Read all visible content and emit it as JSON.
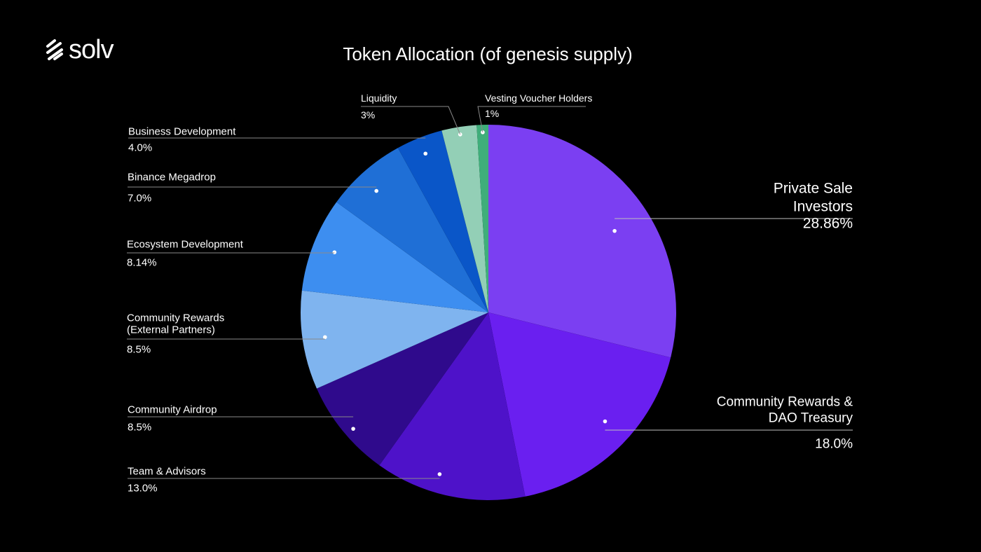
{
  "brand": {
    "name": "solv",
    "mark_icon": "solv-logo-icon"
  },
  "chart_data": {
    "type": "pie",
    "title": "Token Allocation (of genesis supply)",
    "slices": [
      {
        "label": "Private Sale Investors",
        "value": 28.86,
        "value_label": "28.86%",
        "color": "#7b3ff2",
        "label_lines": [
          "Private Sale",
          "Investors"
        ]
      },
      {
        "label": "Community Rewards & DAO Treasury",
        "value": 18.0,
        "value_label": "18.0%",
        "color": "#6a1ff0",
        "label_lines": [
          "Community Rewards &",
          "DAO Treasury"
        ]
      },
      {
        "label": "Team & Advisors",
        "value": 13.0,
        "value_label": "13.0%",
        "color": "#4e12c9",
        "label_lines": [
          "Team & Advisors"
        ]
      },
      {
        "label": "Community Airdrop",
        "value": 8.5,
        "value_label": "8.5%",
        "color": "#2f0a8c",
        "label_lines": [
          "Community Airdrop"
        ]
      },
      {
        "label": "Community Rewards (External Partners)",
        "value": 8.5,
        "value_label": "8.5%",
        "color": "#7fb4ef",
        "label_lines": [
          "Community Rewards",
          "(External Partners)"
        ]
      },
      {
        "label": "Ecosystem Development",
        "value": 8.14,
        "value_label": "8.14%",
        "color": "#3d8ef0",
        "label_lines": [
          "Ecosystem Development"
        ]
      },
      {
        "label": "Binance Megadrop",
        "value": 7.0,
        "value_label": "7.0%",
        "color": "#1f6fd6",
        "label_lines": [
          "Binance Megadrop"
        ]
      },
      {
        "label": "Business Development",
        "value": 4.0,
        "value_label": "4.0%",
        "color": "#0a56c8",
        "label_lines": [
          "Business Development"
        ]
      },
      {
        "label": "Liquidity",
        "value": 3,
        "value_label": "3%",
        "color": "#93cfb6",
        "label_lines": [
          "Liquidity"
        ]
      },
      {
        "label": "Vesting Voucher Holders",
        "value": 1,
        "value_label": "1%",
        "color": "#3fae7a",
        "label_lines": [
          "Vesting Voucher Holders"
        ]
      }
    ],
    "legend": "none"
  }
}
